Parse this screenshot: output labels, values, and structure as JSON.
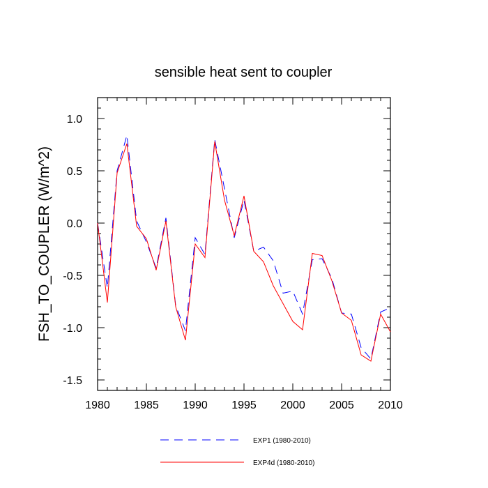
{
  "chart_data": {
    "type": "line",
    "title": "sensible heat sent to coupler",
    "xlabel": "",
    "ylabel": "FSH_TO_COUPLER  (W/m^2)",
    "xlim": [
      1980,
      2010
    ],
    "ylim": [
      -1.6,
      1.2
    ],
    "x_ticks": [
      1980,
      1985,
      1990,
      1995,
      2000,
      2005,
      2010
    ],
    "x_tick_labels": [
      "1980",
      "1985",
      "1990",
      "1995",
      "2000",
      "2005",
      "2010"
    ],
    "y_ticks": [
      -1.5,
      -1.0,
      -0.5,
      0.0,
      0.5,
      1.0
    ],
    "y_tick_labels": [
      "-1.5",
      "-1.0",
      "-0.5",
      "0.0",
      "0.5",
      "1.0"
    ],
    "grid": false,
    "legend_position": "bottom",
    "x": [
      1980,
      1981,
      1982,
      1983,
      1984,
      1985,
      1986,
      1987,
      1988,
      1989,
      1990,
      1991,
      1992,
      1993,
      1994,
      1995,
      1996,
      1997,
      1998,
      1999,
      2000,
      2001,
      2002,
      2003,
      2004,
      2005,
      2006,
      2007,
      2008,
      2009,
      2010
    ],
    "series": [
      {
        "name": "EXP1 (1980-2010)",
        "color": "#0000ff",
        "dash": "dashed",
        "values": [
          0.0,
          -0.62,
          0.5,
          0.84,
          0.02,
          -0.18,
          -0.43,
          0.05,
          -0.79,
          -1.03,
          -0.14,
          -0.3,
          0.8,
          0.33,
          -0.14,
          0.22,
          -0.27,
          -0.23,
          -0.36,
          -0.67,
          -0.65,
          -0.87,
          -0.35,
          -0.34,
          -0.53,
          -0.86,
          -0.87,
          -1.19,
          -1.3,
          -0.85,
          -0.81
        ]
      },
      {
        "name": "EXP4d (1980-2010)",
        "color": "#ff0000",
        "dash": "solid",
        "values": [
          0.0,
          -0.76,
          0.48,
          0.76,
          -0.03,
          -0.15,
          -0.45,
          0.02,
          -0.8,
          -1.12,
          -0.2,
          -0.33,
          0.78,
          0.22,
          -0.12,
          0.26,
          -0.27,
          -0.37,
          -0.6,
          -0.77,
          -0.94,
          -1.02,
          -0.29,
          -0.31,
          -0.55,
          -0.86,
          -0.93,
          -1.26,
          -1.32,
          -0.87,
          -1.04
        ]
      }
    ]
  }
}
